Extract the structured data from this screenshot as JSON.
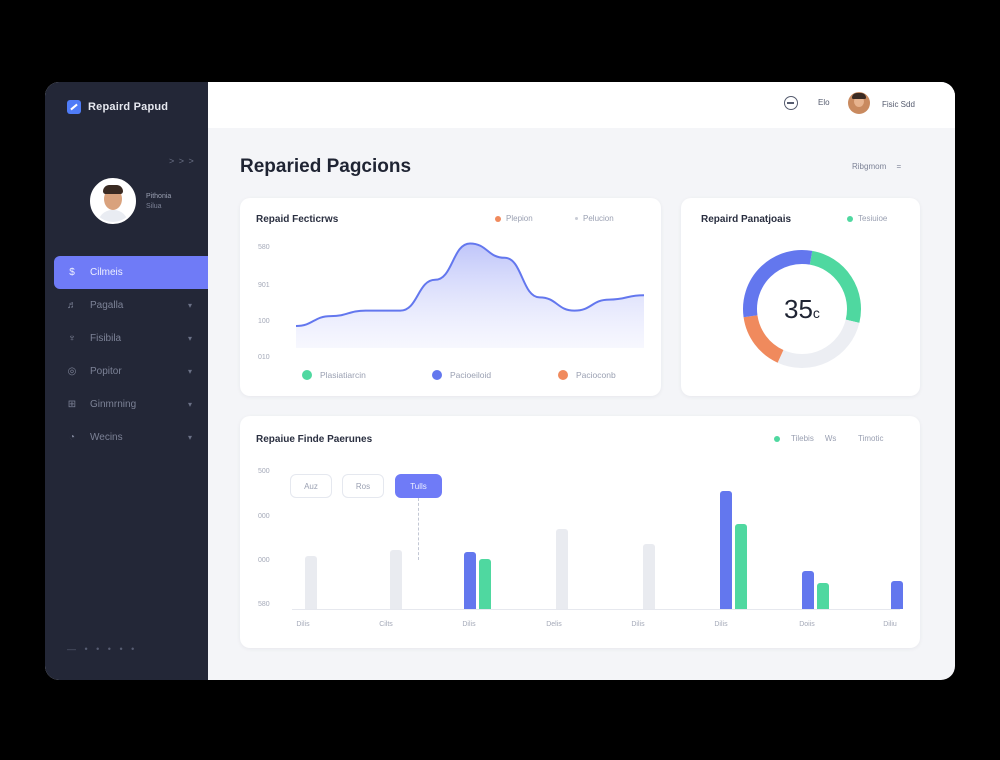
{
  "brand": {
    "name": "Repaird Papud"
  },
  "sidebar": {
    "collapse": "> > >",
    "profile": {
      "name": "Pithonia",
      "role": "Silua"
    },
    "items": [
      {
        "label": "Cilmeis",
        "icon": "$",
        "active": true
      },
      {
        "label": "Pagalla",
        "icon": "♬",
        "active": false
      },
      {
        "label": "Fisibila",
        "icon": "♆",
        "active": false
      },
      {
        "label": "Popitor",
        "icon": "◎",
        "active": false
      },
      {
        "label": "Ginmrning",
        "icon": "⊞",
        "active": false
      },
      {
        "label": "Wecins",
        "icon": "◔",
        "active": false
      }
    ],
    "footer": "— • • • • •"
  },
  "topbar": {
    "mail_label": "Elo",
    "user_label": "Fisic Sdd"
  },
  "page": {
    "title": "Reparied Pagcions",
    "filter_label": "Ribgmom",
    "filter_icon": "="
  },
  "card1": {
    "title": "Repaid Fecticrws",
    "legend": [
      "Plepion",
      "Pelucion"
    ],
    "y_labels": [
      "580",
      "901",
      "100",
      "010"
    ],
    "bottom_legend": [
      {
        "label": "Plasiatiarcin",
        "color": "#4fd8a0"
      },
      {
        "label": "Pacioeiloid",
        "color": "#6377ee"
      },
      {
        "label": "Pacioconb",
        "color": "#f08a5d"
      }
    ]
  },
  "card2": {
    "title": "Repaird Panatjoais",
    "legend": "Tesiuioe",
    "value": "35",
    "value_suffix": "c",
    "segments": [
      {
        "name": "green",
        "color": "#4fd8a0",
        "fraction": 0.26
      },
      {
        "name": "gap",
        "color": "#eceef3",
        "fraction": 0.28
      },
      {
        "name": "orange",
        "color": "#f08a5d",
        "fraction": 0.16
      },
      {
        "name": "blue",
        "color": "#6377ee",
        "fraction": 0.3
      }
    ]
  },
  "card3": {
    "title": "Repaiue Finde Paerunes",
    "legend": [
      "Tilebis",
      "Ws",
      "Timotic"
    ],
    "segments": [
      "Auz",
      "Ros",
      "Tulls"
    ],
    "active_segment": "Tulls",
    "y_labels": [
      "500",
      "000",
      "000",
      "580"
    ],
    "x_labels": [
      "Dilis",
      "Cilts",
      "Dilis",
      "Delis",
      "Dilis",
      "Dilis",
      "Doiis",
      "Diliu"
    ]
  },
  "chart_data": [
    {
      "type": "area",
      "title": "Repaid Fecticrws",
      "x": [
        0,
        1,
        2,
        3,
        4,
        5,
        6,
        7,
        8,
        9,
        10
      ],
      "y": [
        20,
        29,
        34,
        34,
        62,
        95,
        82,
        46,
        34,
        44,
        48
      ],
      "ylim": [
        0,
        100
      ],
      "color": "#6377ee"
    },
    {
      "type": "pie",
      "title": "Repaird Panatjoais",
      "center_value": "35",
      "labels": [
        "green",
        "gap",
        "orange",
        "blue"
      ],
      "values": [
        26,
        28,
        16,
        30
      ],
      "colors": [
        "#4fd8a0",
        "#eceef3",
        "#f08a5d",
        "#6377ee"
      ]
    },
    {
      "type": "bar",
      "title": "Repaiue Finde Paerunes",
      "categories": [
        "Dilis",
        "Cilts",
        "Dilis",
        "Delis",
        "Dilis",
        "Dilis",
        "Doiis",
        "Diliu"
      ],
      "ylim": [
        0,
        100
      ],
      "series": [
        {
          "color": "#e9ebf0",
          "values": [
            45,
            50,
            0,
            68,
            55,
            0,
            0,
            0
          ]
        },
        {
          "color": "#6377ee",
          "values": [
            0,
            0,
            48,
            0,
            0,
            100,
            32,
            24
          ]
        },
        {
          "color": "#4fd8a0",
          "values": [
            0,
            0,
            42,
            0,
            0,
            72,
            22,
            0
          ]
        }
      ]
    }
  ]
}
